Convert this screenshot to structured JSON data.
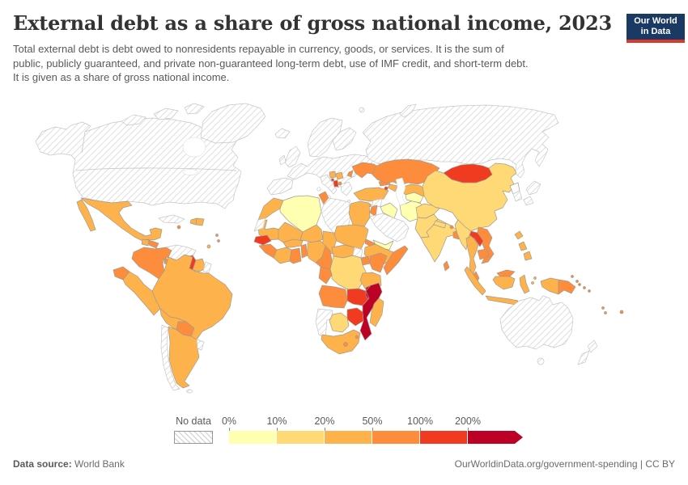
{
  "header": {
    "title": "External debt as a share of gross national income, 2023",
    "subtitle_lines": [
      "Total external debt is debt owed to nonresidents repayable in currency, goods, or services. It is the sum of",
      "public, publicly guaranteed, and private non-guaranteed long-term debt, use of IMF credit, and short-term debt.",
      "It is given as a share of gross national income."
    ],
    "logo": {
      "line1": "Our World",
      "line2": "in Data",
      "bg": "#1a3a63",
      "accent": "#d9382d"
    }
  },
  "legend": {
    "no_data_label": "No data",
    "tick_labels": [
      "0%",
      "10%",
      "20%",
      "50%",
      "100%",
      "200%"
    ]
  },
  "footer": {
    "source_label": "Data source:",
    "source_value": " World Bank",
    "credit": "OurWorldinData.org/government-spending | CC BY"
  },
  "chart_data": {
    "type": "choropleth",
    "title": "External debt as a share of gross national income, 2023",
    "unit": "share of gross national income",
    "legend_thresholds": [
      "0%",
      "10%",
      "20%",
      "50%",
      "100%",
      "200%"
    ],
    "no_data_label": "No data",
    "bins": [
      {
        "range": "0-10%",
        "color": "#ffffb2"
      },
      {
        "range": "10-20%",
        "color": "#fed976"
      },
      {
        "range": "20-50%",
        "color": "#feb24c"
      },
      {
        "range": "50-100%",
        "color": "#fd8d3c"
      },
      {
        "range": "100-200%",
        "color": "#f03b20"
      },
      {
        "range": "200%+",
        "color": "#bd0026"
      }
    ],
    "no_data": [
      "United States and Canada",
      "Greenland",
      "Cuba",
      "Venezuela",
      "French Guiana",
      "Chile",
      "Uruguay",
      "Falkland Islands",
      "Iceland",
      "United Kingdom",
      "Ireland",
      "Spain and Portugal",
      "Mainland Europe",
      "Italy",
      "Greece",
      "Scandinavia",
      "Finland",
      "Russia",
      "Western Sahara",
      "Libya",
      "South Sudan",
      "Namibia",
      "Syria",
      "Saudi Arabia and Gulf states",
      "Japan",
      "South Korea",
      "Australia",
      "New Zealand"
    ],
    "blank": [
      "North Korea"
    ],
    "countries": {
      "Mexico": "20-50%",
      "Guatemala": "20-50%",
      "Honduras": "50-100%",
      "Nicaragua": "50-100%",
      "Costa Rica": "20-50%",
      "Panama": "50-100%",
      "Haiti": "20-50%",
      "Dominican Republic": "20-50%",
      "Jamaica": "50-100%",
      "Lesser Antilles": "50-100%",
      "Trinidad and Tobago": "20-50%",
      "Colombia": "50-100%",
      "Ecuador": "50-100%",
      "Peru": "20-50%",
      "Brazil": "20-50%",
      "Bolivia": "20-50%",
      "Paraguay": "50-100%",
      "Argentina": "20-50%",
      "Guyana": "100-200%",
      "Suriname": "20-50%",
      "Morocco": "20-50%",
      "Algeria": "0-10%",
      "Tunisia": "50-100%",
      "Egypt": "20-50%",
      "Mauritania": "20-50%",
      "Mali": "20-50%",
      "Niger": "20-50%",
      "Chad": "20-50%",
      "Sudan": "20-50%",
      "Eritrea": "50-100%",
      "Ethiopia": "20-50%",
      "Somalia": "50-100%",
      "Senegal": "100-200%",
      "Guinea": "50-100%",
      "Ivory Coast": "20-50%",
      "Ghana": "50-100%",
      "Benin and Togo": "50-100%",
      "Burkina Faso": "20-50%",
      "Nigeria": "20-50%",
      "Cameroon": "50-100%",
      "Central African Republic": "20-50%",
      "Congo and Gabon": "50-100%",
      "Democratic Republic of Congo": "10-20%",
      "Uganda": "50-100%",
      "Kenya": "50-100%",
      "Tanzania": "20-50%",
      "Angola": "50-100%",
      "Zambia": "100-200%",
      "Malawi": "200%+",
      "Mozambique": "200%+",
      "Zimbabwe": "100-200%",
      "Botswana": "10-20%",
      "South Africa": "20-50%",
      "Lesotho": "50-100%",
      "Eswatini": "50-100%",
      "Madagascar": "20-50%",
      "Ukraine": "50-100%",
      "Moldova": "50-100%",
      "Serbia": "20-50%",
      "Bosnia and Herzegovina": "20-50%",
      "Montenegro": "100-200%",
      "Albania": "100-200%",
      "North Macedonia": "50-100%",
      "Turkey": "20-50%",
      "Cyprus": "20-50%",
      "Georgia": "50-100%",
      "Armenia": "100-200%",
      "Azerbaijan": "20-50%",
      "Iraq": "0-10%",
      "Jordan": "50-100%",
      "Iran": "0-10%",
      "Yemen": "0-10%",
      "Kazakhstan": "50-100%",
      "Uzbekistan": "20-50%",
      "Turkmenistan": "0-10%",
      "Kyrgyzstan": "50-100%",
      "Tajikistan": "20-50%",
      "Afghanistan": "10-20%",
      "Pakistan": "10-20%",
      "India": "10-20%",
      "Nepal": "10-20%",
      "Bhutan": "50-100%",
      "Bangladesh": "50-100%",
      "Sri Lanka": "50-100%",
      "China": "10-20%",
      "Mongolia": "100-200%",
      "Myanmar": "10-20%",
      "Laos": "100-200%",
      "Thailand": "20-50%",
      "Vietnam": "50-100%",
      "Cambodia": "50-100%",
      "Malaysia": "50-100%",
      "Indonesia": "20-50%",
      "Philippines": "20-50%",
      "Papua New Guinea": "50-100%",
      "Solomon Islands": "50-100%",
      "Vanuatu": "50-100%",
      "Fiji": "50-100%"
    }
  }
}
